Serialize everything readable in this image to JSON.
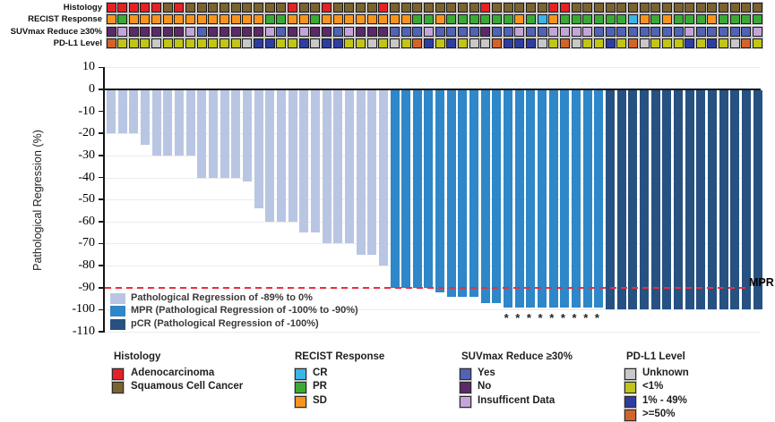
{
  "figure": {
    "y_axis_title": "Pathological Regression (%)",
    "mpr_label": "MPR"
  },
  "tracks": {
    "rows": [
      {
        "label": "Histology",
        "key": "histology"
      },
      {
        "label": "RECIST Response",
        "key": "recist"
      },
      {
        "label": "SUVmax Reduce ≥30%",
        "key": "suvmax"
      },
      {
        "label": "PD-L1 Level",
        "key": "pdl1"
      }
    ],
    "histology": [
      "A",
      "A",
      "A",
      "A",
      "A",
      "S",
      "A",
      "S",
      "S",
      "S",
      "S",
      "S",
      "S",
      "S",
      "S",
      "S",
      "A",
      "S",
      "S",
      "A",
      "S",
      "S",
      "S",
      "S",
      "A",
      "S",
      "S",
      "S",
      "S",
      "S",
      "S",
      "S",
      "S",
      "A",
      "S",
      "S",
      "S",
      "S",
      "S",
      "A",
      "A",
      "S",
      "S",
      "S",
      "S",
      "S",
      "S",
      "S",
      "S",
      "S",
      "S",
      "S",
      "S",
      "S",
      "S",
      "S",
      "S",
      "S"
    ],
    "recist": [
      "SD",
      "PR",
      "SD",
      "SD",
      "SD",
      "SD",
      "SD",
      "SD",
      "SD",
      "SD",
      "SD",
      "SD",
      "SD",
      "SD",
      "PR",
      "PR",
      "SD",
      "SD",
      "PR",
      "SD",
      "SD",
      "SD",
      "SD",
      "SD",
      "SD",
      "SD",
      "SD",
      "PR",
      "PR",
      "SD",
      "PR",
      "PR",
      "PR",
      "PR",
      "PR",
      "PR",
      "SD",
      "PR",
      "CR",
      "SD",
      "PR",
      "PR",
      "PR",
      "PR",
      "PR",
      "PR",
      "CR",
      "SD",
      "PR",
      "SD",
      "PR",
      "PR",
      "PR",
      "SD",
      "PR",
      "PR",
      "PR",
      "PR"
    ],
    "suvmax": [
      "N",
      "I",
      "N",
      "N",
      "N",
      "N",
      "N",
      "I",
      "Y",
      "N",
      "N",
      "N",
      "N",
      "N",
      "I",
      "Y",
      "N",
      "I",
      "N",
      "N",
      "Y",
      "I",
      "N",
      "N",
      "N",
      "Y",
      "Y",
      "Y",
      "I",
      "Y",
      "Y",
      "Y",
      "Y",
      "N",
      "Y",
      "Y",
      "I",
      "Y",
      "Y",
      "I",
      "I",
      "I",
      "I",
      "Y",
      "Y",
      "Y",
      "Y",
      "Y",
      "Y",
      "Y",
      "Y",
      "I",
      "Y",
      "Y",
      "Y",
      "Y",
      "Y",
      "I"
    ],
    "pdl1": [
      "H",
      "L",
      "L",
      "L",
      "U",
      "L",
      "L",
      "L",
      "L",
      "L",
      "L",
      "L",
      "U",
      "M",
      "M",
      "L",
      "L",
      "M",
      "U",
      "M",
      "M",
      "L",
      "L",
      "U",
      "L",
      "U",
      "L",
      "H",
      "M",
      "L",
      "M",
      "L",
      "U",
      "U",
      "H",
      "M",
      "M",
      "M",
      "U",
      "L",
      "H",
      "U",
      "L",
      "L",
      "M",
      "L",
      "H",
      "U",
      "L",
      "L",
      "L",
      "M",
      "L",
      "M",
      "L",
      "U",
      "H",
      "L"
    ],
    "colors": {
      "histology": {
        "A": "#e32226",
        "S": "#7b6331"
      },
      "recist": {
        "CR": "#3cb4e5",
        "PR": "#3aa935",
        "SD": "#f7941e"
      },
      "suvmax": {
        "Y": "#5163b4",
        "N": "#5b2a68",
        "I": "#c3a5d9"
      },
      "pdl1": {
        "U": "#c8c8c8",
        "L": "#c1c516",
        "M": "#2e3da0",
        "H": "#d2632a"
      }
    }
  },
  "chart_data": {
    "type": "bar",
    "title": "",
    "xlabel": "",
    "ylabel": "Pathological Regression (%)",
    "ylim": [
      -110,
      10
    ],
    "yticks": [
      10,
      0,
      -10,
      -20,
      -30,
      -40,
      -50,
      -60,
      -70,
      -80,
      -90,
      -100,
      -110
    ],
    "values": [
      -20,
      -20,
      -20,
      -25,
      -30,
      -30,
      -30,
      -30,
      -40,
      -40,
      -40,
      -40,
      -42,
      -54,
      -60,
      -60,
      -60,
      -65,
      -65,
      -70,
      -70,
      -70,
      -75,
      -75,
      -80,
      -90,
      -90,
      -90,
      -90,
      -92,
      -94,
      -94,
      -94,
      -97,
      -97,
      -99,
      -99,
      -99,
      -99,
      -99,
      -99,
      -99,
      -99,
      -99,
      -100,
      -100,
      -100,
      -100,
      -100,
      -100,
      -100,
      -100,
      -100,
      -100,
      -100,
      -100,
      -100,
      -100
    ],
    "mpr_threshold": -90,
    "mpr_label": "MPR",
    "asterisk_bars": [
      36,
      37,
      38,
      39,
      40,
      41,
      42,
      43,
      44
    ],
    "bar_colors": {
      "light": "#b9c6e3",
      "mpr": "#2d87c8",
      "pcr": "#265181"
    },
    "threshold_color": "#ee2c3c",
    "legend_position": "inside bottom-left",
    "grid": true,
    "legend": [
      {
        "label": "Pathological Regression of -89% to 0%",
        "category": "light"
      },
      {
        "label": "MPR (Pathological Regression of -100% to -90%)",
        "category": "mpr"
      },
      {
        "label": "pCR (Pathological Regression of -100%)",
        "category": "pcr"
      }
    ]
  },
  "bottom_legend": [
    {
      "title": "Histology",
      "items": [
        {
          "label": "Adenocarcinoma",
          "color": "#e32226"
        },
        {
          "label": "Squamous Cell Cancer",
          "color": "#7b6331"
        }
      ]
    },
    {
      "title": "RECIST Response",
      "items": [
        {
          "label": "CR",
          "color": "#3cb4e5"
        },
        {
          "label": "PR",
          "color": "#3aa935"
        },
        {
          "label": "SD",
          "color": "#f7941e"
        }
      ]
    },
    {
      "title": "SUVmax Reduce ≥30%",
      "items": [
        {
          "label": "Yes",
          "color": "#5163b4"
        },
        {
          "label": "No",
          "color": "#5b2a68"
        },
        {
          "label": "Insufficent Data",
          "color": "#c3a5d9"
        }
      ]
    },
    {
      "title": "PD-L1 Level",
      "items": [
        {
          "label": "Unknown",
          "color": "#c8c8c8"
        },
        {
          "label": "<1%",
          "color": "#c1c516"
        },
        {
          "label": "1% - 49%",
          "color": "#2e3da0"
        },
        {
          "label": ">=50%",
          "color": "#d2632a"
        }
      ]
    }
  ]
}
